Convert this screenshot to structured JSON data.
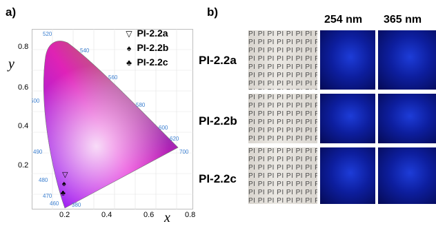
{
  "panel_a": {
    "label": "a)",
    "y_axis_label": "y",
    "x_axis_label": "x",
    "x_ticks": [
      "0.2",
      "0.4",
      "0.6",
      "0.8"
    ],
    "y_ticks": [
      "0.8",
      "0.6",
      "0.4",
      "0.2"
    ],
    "wavelength_labels": [
      "520",
      "540",
      "560",
      "580",
      "600",
      "620",
      "700",
      "500",
      "490",
      "480",
      "470",
      "460",
      "380"
    ],
    "legend": [
      {
        "symbol": "▽",
        "label": "PI-2.2a"
      },
      {
        "symbol": "♠",
        "label": "PI-2.2b"
      },
      {
        "symbol": "♣",
        "label": "PI-2.2c"
      }
    ]
  },
  "chart_data": {
    "type": "scatter",
    "title": "",
    "xlabel": "x",
    "ylabel": "y",
    "xlim": [
      0,
      0.8
    ],
    "ylim": [
      0,
      0.9
    ],
    "series": [
      {
        "name": "PI-2.2a",
        "x": [
          0.165
        ],
        "y": [
          0.175
        ]
      },
      {
        "name": "PI-2.2b",
        "x": [
          0.16
        ],
        "y": [
          0.13
        ]
      },
      {
        "name": "PI-2.2c",
        "x": [
          0.155
        ],
        "y": [
          0.085
        ]
      }
    ],
    "colors": {
      "marker": "#000000",
      "wavelength_text": "#3b7fd0"
    }
  },
  "panel_b": {
    "label": "b)",
    "column_headers": [
      "254 nm",
      "365 nm"
    ],
    "rows": [
      "PI-2.2a",
      "PI-2.2b",
      "PI-2.2c"
    ],
    "sheet_text": "PI PI PI PI PI PI PI PI PI PI PI PI"
  }
}
